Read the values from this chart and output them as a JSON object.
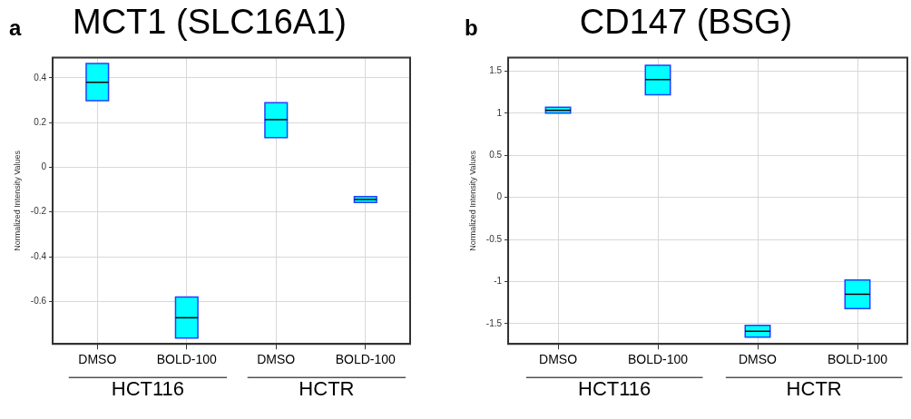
{
  "chart_data": [
    {
      "type": "box",
      "title": "MCT1 (SLC16A1)",
      "ylabel": "Normalized Intensity Values",
      "categories": [
        "DMSO",
        "BOLD-100",
        "DMSO",
        "BOLD-100"
      ],
      "color": "#00ffff",
      "boxes": [
        {
          "low": 0.298,
          "q1": 0.298,
          "median": 0.38,
          "q3": 0.464,
          "high": 0.464
        },
        {
          "low": -0.764,
          "q1": -0.764,
          "median": -0.673,
          "q3": -0.58,
          "high": -0.58
        },
        {
          "low": 0.132,
          "q1": 0.132,
          "median": 0.213,
          "q3": 0.289,
          "high": 0.289
        },
        {
          "low": -0.157,
          "q1": -0.157,
          "median": -0.144,
          "q3": -0.131,
          "high": -0.131
        }
      ],
      "ylim": [
        -0.79,
        0.49
      ],
      "yticks": [
        -0.6,
        -0.4,
        -0.2,
        0,
        0.2,
        0.4
      ],
      "grid": true,
      "annotations": [
        "a",
        "HCT116",
        "HCTR"
      ]
    },
    {
      "type": "box",
      "title": "CD147 (BSG)",
      "ylabel": "Normalized Intensity Values",
      "categories": [
        "DMSO",
        "BOLD-100",
        "DMSO",
        "BOLD-100"
      ],
      "color": "#00ffff",
      "boxes": [
        {
          "low": 1.0,
          "q1": 1.0,
          "median": 1.035,
          "q3": 1.07,
          "high": 1.07
        },
        {
          "low": 1.22,
          "q1": 1.22,
          "median": 1.4,
          "q3": 1.57,
          "high": 1.57
        },
        {
          "low": -1.66,
          "q1": -1.66,
          "median": -1.59,
          "q3": -1.52,
          "high": -1.52
        },
        {
          "low": -1.32,
          "q1": -1.32,
          "median": -1.15,
          "q3": -0.98,
          "high": -0.98
        }
      ],
      "ylim": [
        -1.74,
        1.66
      ],
      "yticks": [
        -1.5,
        -1,
        -0.5,
        0,
        0.5,
        1,
        1.5
      ],
      "grid": true,
      "annotations": [
        "b",
        "HCT116",
        "HCTR"
      ]
    }
  ]
}
